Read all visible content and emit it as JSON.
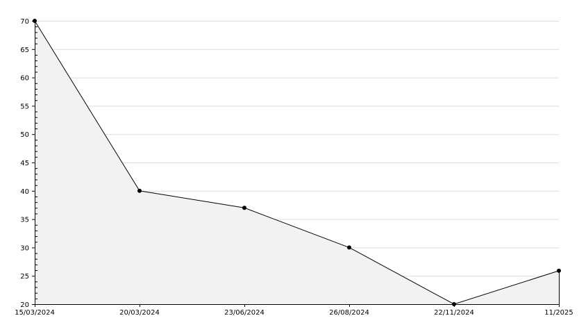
{
  "chart_data": {
    "type": "area",
    "title": "",
    "xlabel": "",
    "ylabel": "",
    "categories": [
      "15/03/2024",
      "20/03/2024",
      "23/06/2024",
      "26/08/2024",
      "22/11/2024",
      "11/2025"
    ],
    "values": [
      70,
      40,
      37,
      30,
      20,
      25.9
    ],
    "ylim": [
      20,
      70
    ],
    "yticks": [
      20,
      25,
      30,
      35,
      40,
      45,
      50,
      55,
      60,
      65,
      70
    ],
    "y_minor_step": 1,
    "grid": true,
    "colors": {
      "line": "#000000",
      "fill": "#f2f2f2",
      "grid": "#dddddd",
      "marker": "#000000"
    }
  }
}
